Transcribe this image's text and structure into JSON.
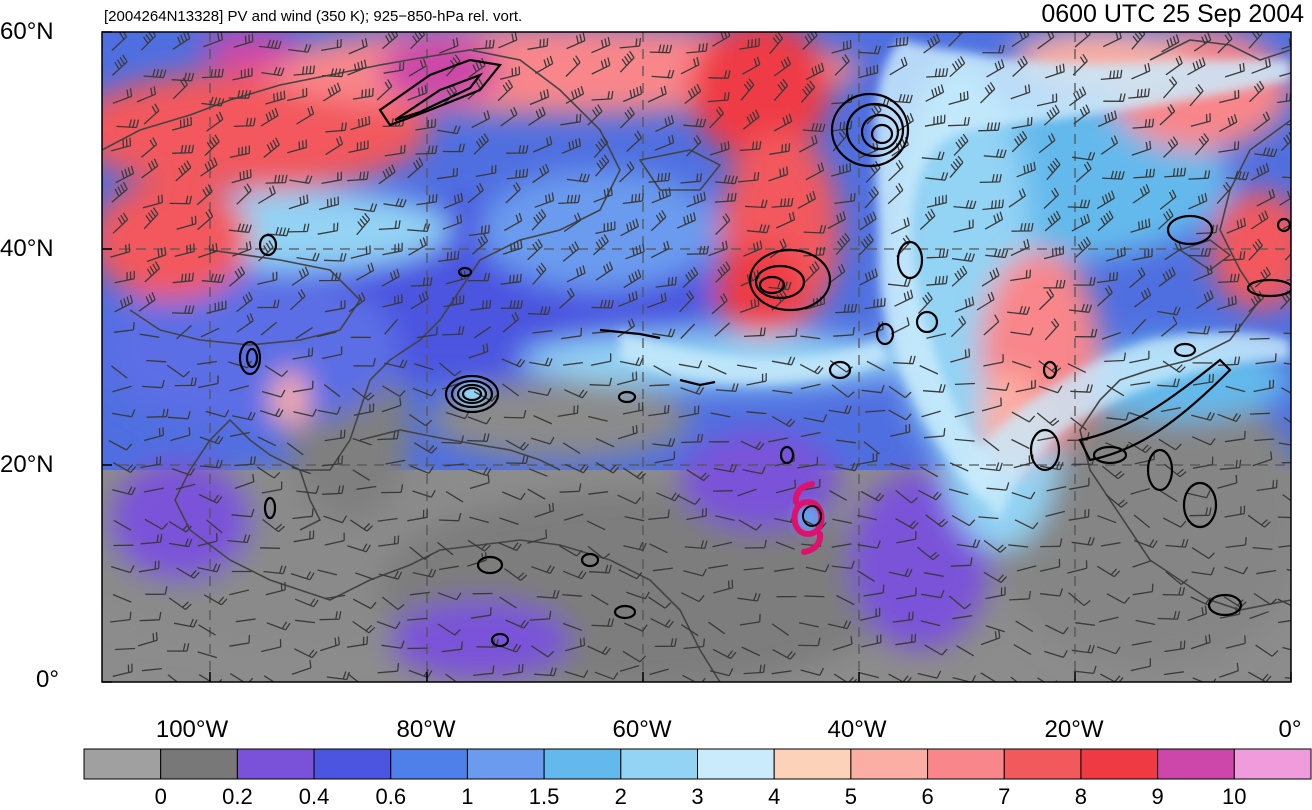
{
  "title": {
    "left": "[2004264N13328] PV and wind (350 K); 925−850-hPa rel. vort.",
    "right": "0600 UTC 25 Sep 2004"
  },
  "axes": {
    "lat_ticks": [
      "60°N",
      "40°N",
      "20°N",
      "0°"
    ],
    "lon_ticks": [
      "100°W",
      "80°W",
      "60°W",
      "40°W",
      "20°W",
      "0°"
    ]
  },
  "colorbar": {
    "labels": [
      "0",
      "0.2",
      "0.4",
      "0.6",
      "1",
      "1.5",
      "2",
      "3",
      "4",
      "5",
      "6",
      "7",
      "8",
      "9",
      "10"
    ],
    "colors": [
      "#a0a0a0",
      "#787878",
      "#7a52d9",
      "#4b55e0",
      "#4f7fe8",
      "#6a9bee",
      "#63b9ec",
      "#93d3f4",
      "#c9ebfb",
      "#fcd3b9",
      "#fbaea3",
      "#f8868a",
      "#f2595d",
      "#ef3a44",
      "#cc47a9",
      "#ef9bdc"
    ]
  },
  "colors": {
    "grid": "#555555",
    "coast": "#444444",
    "vort_contour": "#000000",
    "track": "#e0106e"
  }
}
